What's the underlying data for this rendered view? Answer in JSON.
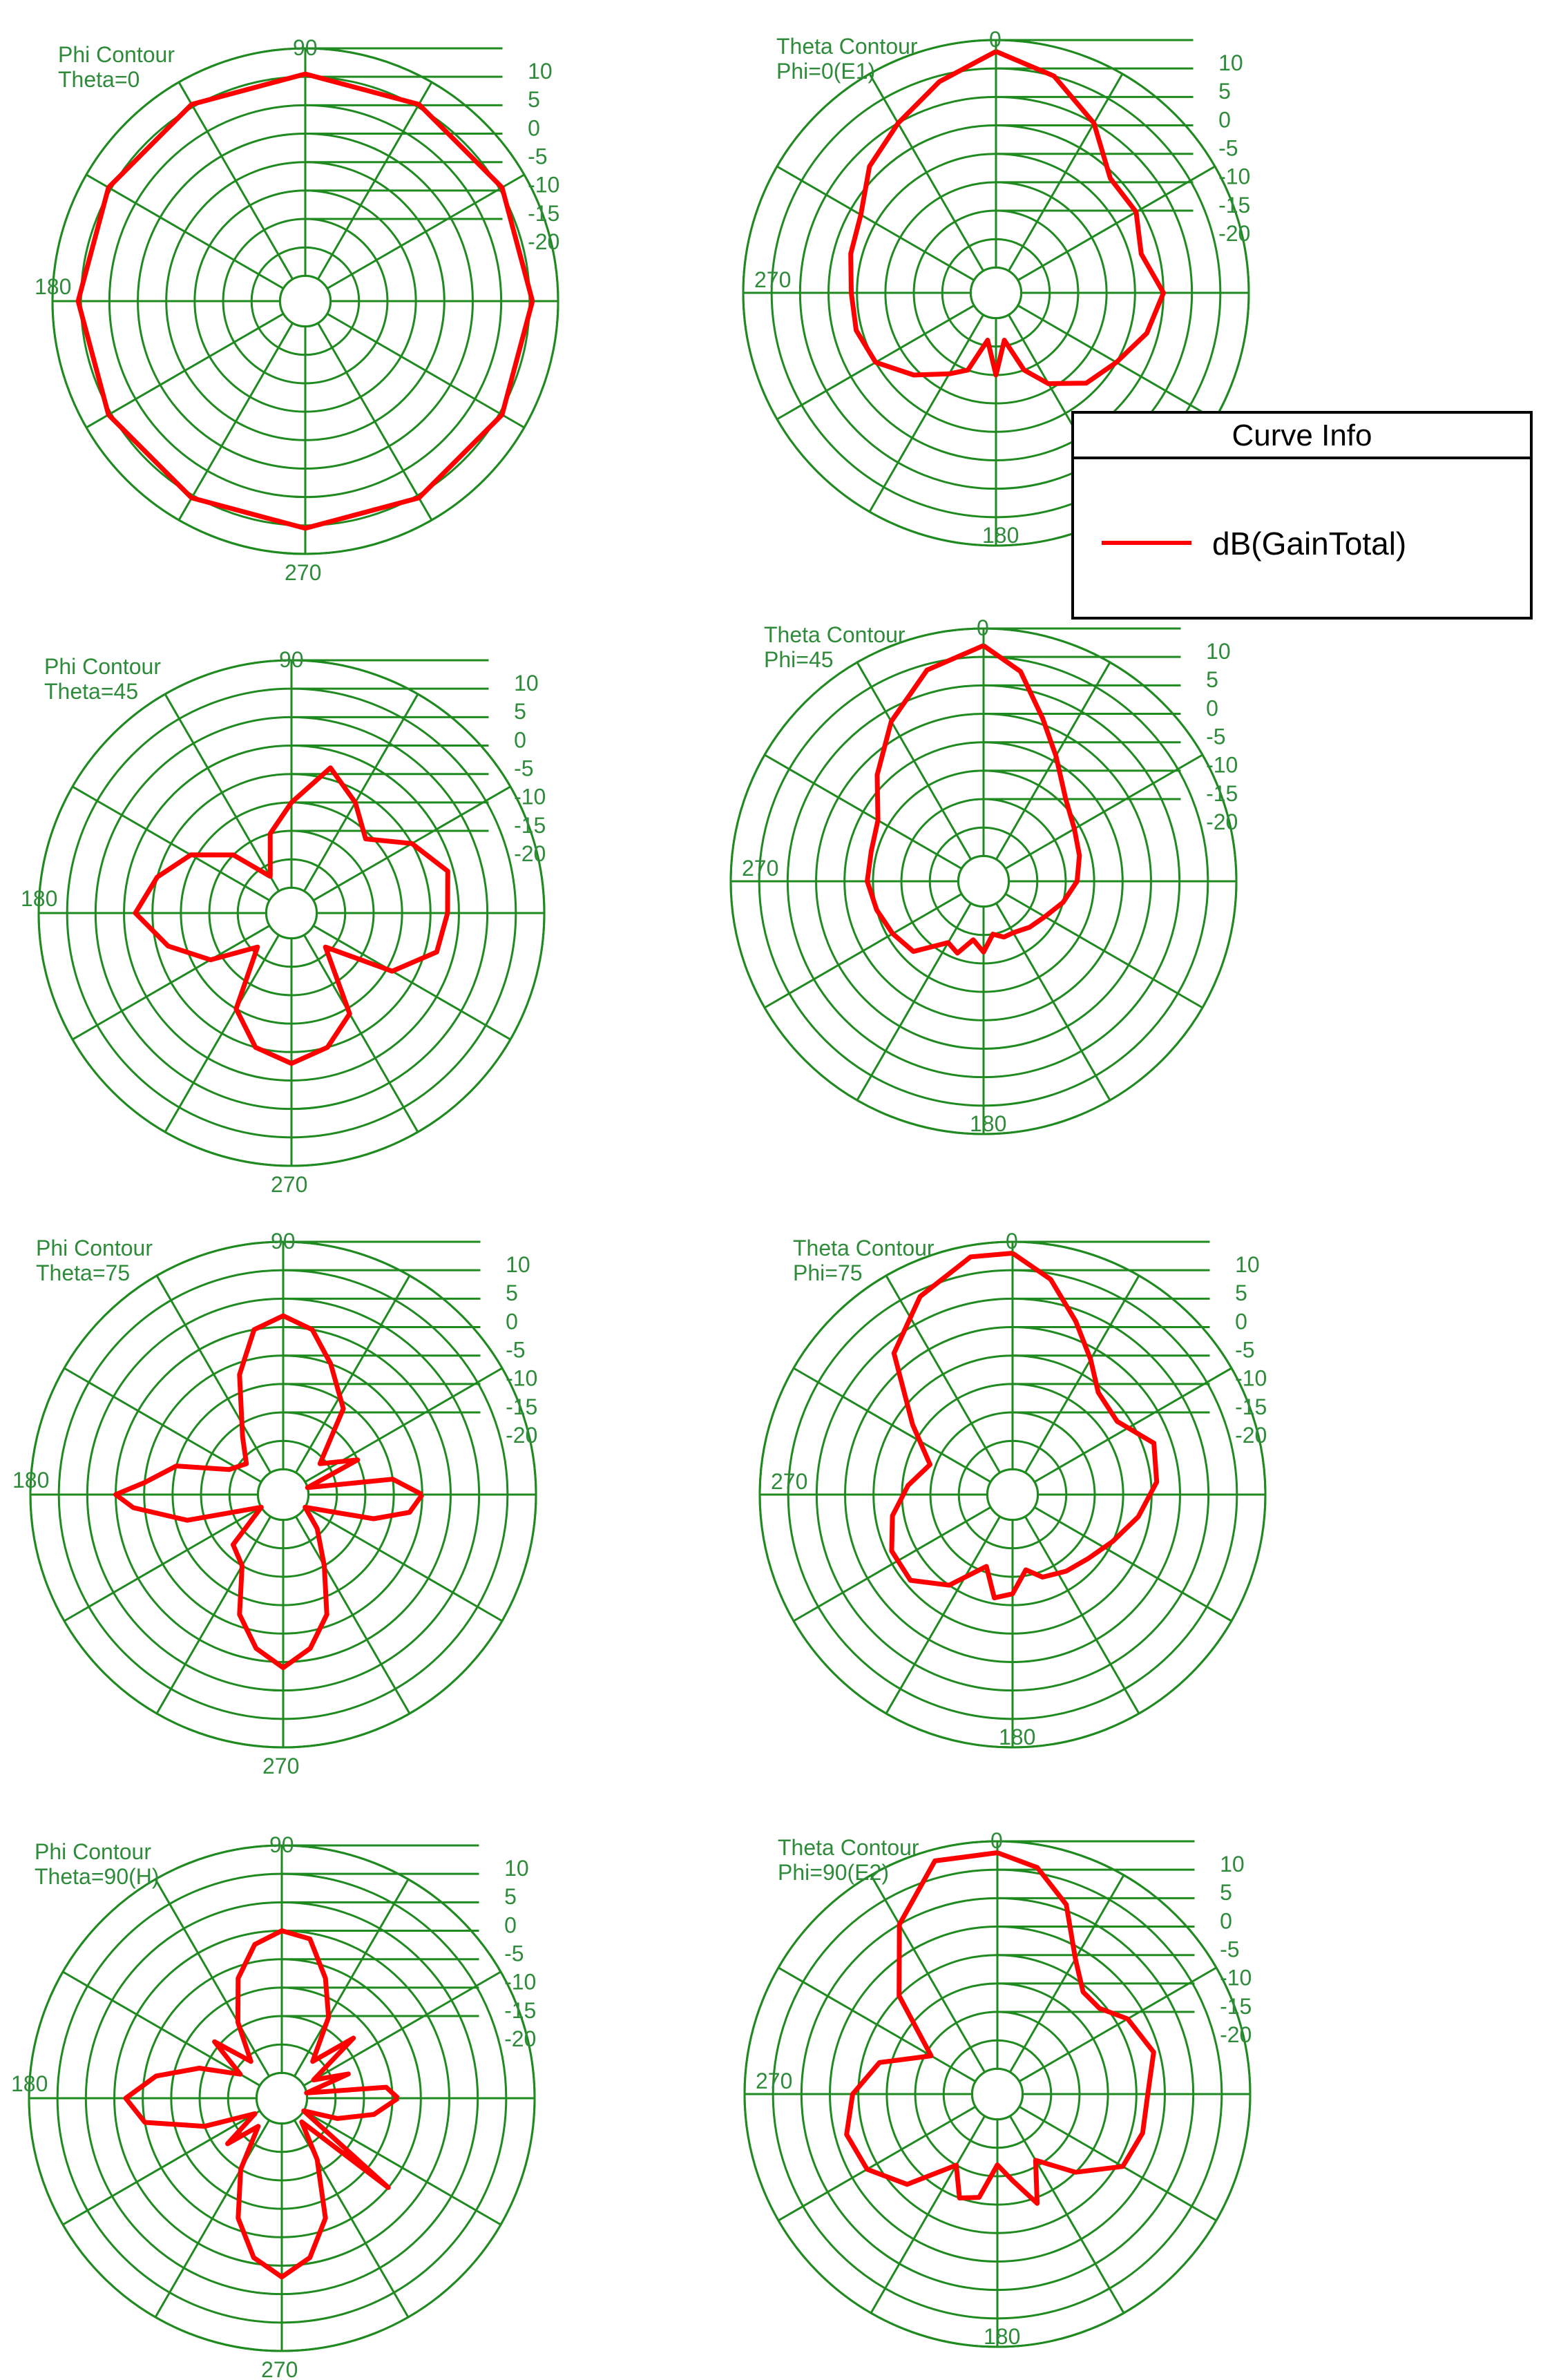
{
  "colors": {
    "grid": "#1f8a1f",
    "curve": "#ff0000",
    "text": "#2e8b3a"
  },
  "legend": {
    "title": "Curve Info",
    "entry": "dB(GainTotal)"
  },
  "chart_data": [
    {
      "type": "line",
      "subtype": "polar",
      "title": [
        "Phi Contour",
        "Theta=0"
      ],
      "angle_labels": [
        "90",
        "180",
        "270"
      ],
      "radial_ticks": [
        "10",
        "5",
        "0",
        "-5",
        "-10",
        "-15",
        "-20"
      ],
      "rlim": [
        -30,
        10
      ],
      "series": [
        {
          "name": "dB(GainTotal)",
          "theta_deg": [
            0,
            30,
            60,
            90,
            120,
            150,
            180,
            210,
            240,
            270,
            300,
            330,
            360
          ],
          "r_db": [
            5.5,
            5.5,
            5.5,
            5.5,
            5.5,
            5.5,
            5.5,
            5.5,
            5.5,
            5.5,
            5.5,
            5.5,
            5.5
          ]
        }
      ]
    },
    {
      "type": "line",
      "subtype": "polar",
      "title": [
        "Theta Contour",
        "Phi=0(E1)"
      ],
      "angle_labels": [
        "0",
        "270",
        "180"
      ],
      "radial_ticks": [
        "10",
        "5",
        "0",
        "-5",
        "-10",
        "-15",
        "-20"
      ],
      "rlim": [
        -30,
        10
      ],
      "series": [
        {
          "name": "dB(GainTotal)",
          "theta_deg": [
            0,
            15,
            30,
            45,
            60,
            75,
            90,
            105,
            120,
            135,
            150,
            160,
            170,
            180,
            190,
            200,
            210,
            225,
            240,
            255,
            270,
            285,
            300,
            315,
            330,
            345,
            360
          ],
          "r_db": [
            8,
            5,
            0,
            -6,
            -6,
            -8,
            -5,
            -7,
            -10,
            -12,
            -16,
            -20,
            -26,
            -20,
            -26,
            -20,
            -18,
            -14,
            -10,
            -9,
            -9,
            -8,
            -7,
            -3,
            0,
            4,
            8
          ]
        }
      ]
    },
    {
      "type": "line",
      "subtype": "polar",
      "title": [
        "Phi Contour",
        "Theta=45"
      ],
      "angle_labels": [
        "90",
        "180",
        "270"
      ],
      "radial_ticks": [
        "10",
        "5",
        "0",
        "-5",
        "-10",
        "-15",
        "-20"
      ],
      "rlim": [
        -30,
        10
      ],
      "series": [
        {
          "name": "dB(GainTotal)",
          "theta_deg": [
            0,
            15,
            30,
            45,
            60,
            75,
            90,
            105,
            120,
            135,
            150,
            165,
            180,
            195,
            210,
            225,
            240,
            255,
            270,
            285,
            300,
            315,
            330,
            345,
            360
          ],
          "r_db": [
            -7,
            -6,
            -10,
            -16,
            -12,
            -8,
            -15,
            -20,
            -27,
            -20,
            -14,
            -10,
            -7,
            -12,
            -18,
            -26,
            -15,
            -10,
            -8,
            -10,
            -14,
            -26,
            -14,
            -8,
            -7
          ]
        }
      ]
    },
    {
      "type": "line",
      "subtype": "polar",
      "title": [
        "Theta Contour",
        "Phi=45"
      ],
      "angle_labels": [
        "0",
        "270",
        "180"
      ],
      "radial_ticks": [
        "10",
        "5",
        "0",
        "-5",
        "-10",
        "-15",
        "-20"
      ],
      "rlim": [
        -30,
        10
      ],
      "series": [
        {
          "name": "dB(GainTotal)",
          "theta_deg": [
            0,
            10,
            20,
            30,
            45,
            60,
            75,
            90,
            105,
            120,
            135,
            150,
            160,
            170,
            180,
            190,
            200,
            210,
            225,
            240,
            255,
            270,
            285,
            300,
            315,
            330,
            345,
            360
          ],
          "r_db": [
            7,
            3,
            -4,
            -9,
            -14,
            -16,
            -17,
            -18,
            -20,
            -22,
            -23,
            -24,
            -24,
            -25,
            -22,
            -24,
            -21,
            -22,
            -17,
            -16,
            -15,
            -14,
            -14,
            -13,
            -8,
            -2,
            4,
            7
          ]
        }
      ]
    },
    {
      "type": "line",
      "subtype": "polar",
      "title": [
        "Phi Contour",
        "Theta=75"
      ],
      "angle_labels": [
        "90",
        "180",
        "270"
      ],
      "radial_ticks": [
        "10",
        "5",
        "0",
        "-5",
        "-10",
        "-15",
        "-20"
      ],
      "rlim": [
        -30,
        10
      ],
      "series": [
        {
          "name": "dB(GainTotal)",
          "theta_deg": [
            0,
            8,
            16,
            25,
            40,
            55,
            70,
            80,
            90,
            100,
            110,
            125,
            140,
            155,
            165,
            175,
            180,
            185,
            195,
            210,
            225,
            240,
            250,
            260,
            270,
            280,
            290,
            300,
            315,
            330,
            345,
            352,
            360
          ],
          "r_db": [
            -10,
            -15,
            -30,
            -20,
            -26,
            -16,
            -10,
            -5,
            -3,
            -5,
            -12,
            -22,
            -26,
            -24,
            -15,
            -10,
            -5,
            -8,
            -17,
            -30,
            -22,
            -20,
            -12,
            -7,
            -4,
            -7,
            -12,
            -20,
            -26,
            -30,
            -18,
            -12,
            -10
          ]
        }
      ]
    },
    {
      "type": "line",
      "subtype": "polar",
      "title": [
        "Theta Contour",
        "Phi=75"
      ],
      "angle_labels": [
        "0",
        "270",
        "180"
      ],
      "radial_ticks": [
        "10",
        "5",
        "0",
        "-5",
        "-10",
        "-15",
        "-20"
      ],
      "rlim": [
        -30,
        10
      ],
      "series": [
        {
          "name": "dB(GainTotal)",
          "theta_deg": [
            0,
            10,
            20,
            30,
            40,
            55,
            70,
            85,
            100,
            115,
            130,
            145,
            160,
            170,
            180,
            190,
            200,
            215,
            230,
            245,
            260,
            275,
            290,
            305,
            320,
            335,
            350,
            360
          ],
          "r_db": [
            8,
            4,
            -2,
            -7,
            -11,
            -12,
            -8,
            -9,
            -12,
            -15,
            -17,
            -18,
            -19,
            -21,
            -17,
            -16,
            -21,
            -15,
            -11,
            -11,
            -13,
            -16,
            -19,
            -13,
            -2,
            4,
            8,
            8
          ]
        }
      ]
    },
    {
      "type": "line",
      "subtype": "polar",
      "title": [
        "Phi Contour",
        "Theta=90(H)"
      ],
      "angle_labels": [
        "90",
        "180",
        "270"
      ],
      "radial_ticks": [
        "10",
        "5",
        "0",
        "-5",
        "-10",
        "-15",
        "-20"
      ],
      "rlim": [
        -30,
        10
      ],
      "series": [
        {
          "name": "dB(GainTotal)",
          "theta_deg": [
            0,
            6,
            12,
            20,
            30,
            40,
            50,
            60,
            70,
            80,
            90,
            100,
            110,
            120,
            130,
            140,
            150,
            160,
            170,
            180,
            190,
            200,
            210,
            220,
            230,
            240,
            250,
            260,
            270,
            280,
            290,
            300,
            310,
            320,
            330,
            340,
            350,
            360
          ],
          "r_db": [
            -14,
            -16,
            -30,
            -22,
            -28,
            -18,
            -26,
            -18,
            -12,
            -6,
            -5,
            -7,
            -12,
            -19,
            -26,
            -19,
            -26,
            -19,
            -12,
            -7,
            -10,
            -20,
            -29,
            -22,
            -28,
            -20,
            -12,
            -6,
            -3,
            -6,
            -12,
            -22,
            -29,
            -10,
            -30,
            -24,
            -18,
            -14
          ]
        }
      ]
    },
    {
      "type": "line",
      "subtype": "polar",
      "title": [
        "Theta Contour",
        "Phi=90(E2)"
      ],
      "angle_labels": [
        "0",
        "270",
        "180"
      ],
      "radial_ticks": [
        "10",
        "5",
        "0",
        "-5",
        "-10",
        "-15",
        "-20"
      ],
      "rlim": [
        -30,
        10
      ],
      "series": [
        {
          "name": "dB(GainTotal)",
          "theta_deg": [
            0,
            10,
            20,
            30,
            40,
            50,
            60,
            75,
            90,
            105,
            120,
            135,
            150,
            160,
            170,
            180,
            190,
            200,
            210,
            225,
            240,
            255,
            270,
            285,
            300,
            315,
            330,
            345,
            360
          ],
          "r_db": [
            8,
            6,
            1,
            -7,
            -11,
            -11,
            -8,
            -6,
            -8,
            -8,
            -9,
            -15,
            -21,
            -14,
            -19,
            -22,
            -16,
            -15,
            -20,
            -12,
            -8,
            -7,
            -9,
            -13,
            -21,
            -10,
            0,
            8,
            8
          ]
        }
      ]
    }
  ]
}
